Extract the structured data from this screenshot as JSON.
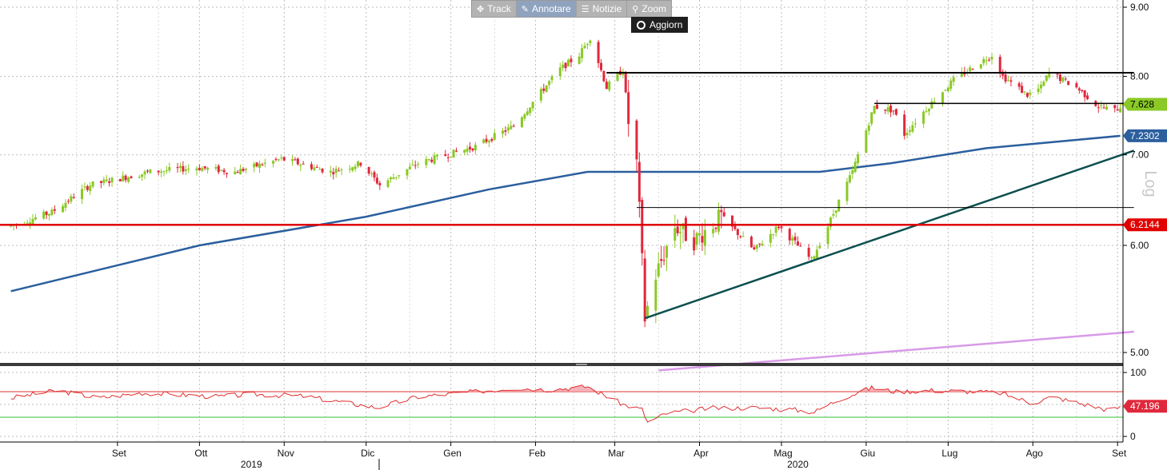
{
  "toolbar": {
    "track_label": "Track",
    "annotate_label": "Annotare",
    "news_label": "Notizie",
    "zoom_label": "Zoom",
    "refresh_label": "Aggiorn",
    "icons": [
      "move-icon",
      "pencil-icon",
      "news-icon",
      "magnifier-icon",
      "refresh-icon"
    ]
  },
  "chart_data": [
    {
      "type": "candlestick",
      "scale": "log",
      "log_label": "Log",
      "ylim": [
        4.85,
        9.1
      ],
      "y_ticks": [
        5.0,
        6.0,
        7.0,
        8.0,
        9.0
      ],
      "y_tick_labels": [
        "5.00",
        "6.00",
        "7.00",
        "8.00",
        "9.00"
      ],
      "grid": true,
      "colors": {
        "up": "#8ac926",
        "down": "#e0283c"
      },
      "anchors": [
        [
          "2019-07-24",
          6.2
        ],
        [
          "2019-08-08",
          6.35
        ],
        [
          "2019-08-22",
          6.65
        ],
        [
          "2019-09-13",
          6.8
        ],
        [
          "2019-09-30",
          6.85
        ],
        [
          "2019-10-14",
          6.8
        ],
        [
          "2019-10-31",
          6.95
        ],
        [
          "2019-11-18",
          6.8
        ],
        [
          "2019-11-29",
          6.9
        ],
        [
          "2019-12-06",
          6.65
        ],
        [
          "2019-12-20",
          6.9
        ],
        [
          "2020-01-10",
          7.1
        ],
        [
          "2020-01-24",
          7.35
        ],
        [
          "2020-02-10",
          8.1
        ],
        [
          "2020-02-17",
          8.3
        ],
        [
          "2020-02-21",
          8.55
        ],
        [
          "2020-02-27",
          7.85
        ],
        [
          "2020-03-04",
          8.1
        ],
        [
          "2020-03-06",
          7.4
        ],
        [
          "2020-03-09",
          6.9
        ],
        [
          "2020-03-12",
          5.3
        ],
        [
          "2020-03-16",
          5.7
        ],
        [
          "2020-03-23",
          6.2
        ],
        [
          "2020-03-30",
          6.05
        ],
        [
          "2020-04-09",
          6.3
        ],
        [
          "2020-04-21",
          5.95
        ],
        [
          "2020-04-30",
          6.2
        ],
        [
          "2020-05-12",
          5.85
        ],
        [
          "2020-05-18",
          6.2
        ],
        [
          "2020-05-27",
          6.8
        ],
        [
          "2020-06-04",
          7.6
        ],
        [
          "2020-06-11",
          7.55
        ],
        [
          "2020-06-15",
          7.25
        ],
        [
          "2020-06-25",
          7.65
        ],
        [
          "2020-07-03",
          7.95
        ],
        [
          "2020-07-17",
          8.3
        ],
        [
          "2020-07-21",
          8.0
        ],
        [
          "2020-07-30",
          7.75
        ],
        [
          "2020-08-04",
          7.85
        ],
        [
          "2020-08-07",
          8.05
        ],
        [
          "2020-08-17",
          7.85
        ],
        [
          "2020-08-25",
          7.6
        ],
        [
          "2020-08-31",
          7.55
        ],
        [
          "2020-09-02",
          7.6
        ]
      ],
      "lines": [
        {
          "name": "moving-average",
          "color": "#2b5f9e",
          "points": [
            [
              "2019-07-24",
              5.55
            ],
            [
              "2019-10-01",
              6.0
            ],
            [
              "2019-12-01",
              6.3
            ],
            [
              "2020-01-15",
              6.6
            ],
            [
              "2020-02-20",
              6.8
            ],
            [
              "2020-03-10",
              6.8
            ],
            [
              "2020-05-15",
              6.8
            ],
            [
              "2020-06-10",
              6.9
            ],
            [
              "2020-07-15",
              7.08
            ],
            [
              "2020-09-02",
              7.23
            ]
          ]
        },
        {
          "name": "trendline",
          "color": "#0d4f4f",
          "points": [
            [
              "2020-03-12",
              5.3
            ],
            [
              "2020-09-07",
              7.05
            ]
          ]
        },
        {
          "name": "lower-trendline",
          "color": "#d89ae8",
          "points": [
            [
              "2020-03-17",
              4.85
            ],
            [
              "2020-09-07",
              5.18
            ]
          ]
        },
        {
          "name": "horizontal-line-1",
          "color": "#000000",
          "points": [
            [
              "2020-02-27",
              8.05
            ],
            [
              "2020-09-07",
              8.05
            ]
          ]
        },
        {
          "name": "horizontal-line-2",
          "color": "#000000",
          "points": [
            [
              "2020-06-04",
              7.64
            ],
            [
              "2020-09-07",
              7.64
            ]
          ]
        },
        {
          "name": "horizontal-line-3",
          "color": "#000000",
          "points": [
            [
              "2020-03-09",
              6.4
            ],
            [
              "2020-09-07",
              6.4
            ]
          ]
        },
        {
          "name": "horizontal-line-4",
          "color": "#e00000",
          "points": [
            [
              "2019-07-20",
              6.2144
            ],
            [
              "2020-09-07",
              6.2144
            ]
          ]
        }
      ],
      "value_tags": [
        {
          "label": "7.628",
          "value": 7.628,
          "bg": "#8ac926",
          "fg": "#000000"
        },
        {
          "label": "7.2302",
          "value": 7.2302,
          "bg": "#2b5f9e",
          "fg": "#ffffff"
        },
        {
          "label": "6.2144",
          "value": 6.2144,
          "bg": "#e00000",
          "fg": "#ffffff"
        }
      ]
    },
    {
      "type": "line",
      "ylim": [
        -8,
        108
      ],
      "y_ticks": [
        0,
        100
      ],
      "y_tick_labels": [
        "0",
        "100"
      ],
      "levels": [
        70,
        30
      ],
      "level_colors": [
        "#e03030",
        "#30c030"
      ],
      "series_color": "#e03030",
      "current": {
        "label": "47.196",
        "value": 47.196,
        "bg": "#e0283c",
        "fg": "#ffffff"
      },
      "anchors": [
        [
          "2019-07-24",
          60
        ],
        [
          "2019-08-10",
          72
        ],
        [
          "2019-08-25",
          60
        ],
        [
          "2019-09-10",
          68
        ],
        [
          "2019-09-25",
          65
        ],
        [
          "2019-10-08",
          62
        ],
        [
          "2019-10-20",
          66
        ],
        [
          "2019-11-08",
          63
        ],
        [
          "2019-11-20",
          55
        ],
        [
          "2019-12-05",
          45
        ],
        [
          "2019-12-20",
          62
        ],
        [
          "2020-01-10",
          70
        ],
        [
          "2020-01-25",
          76
        ],
        [
          "2020-02-06",
          73
        ],
        [
          "2020-02-20",
          78
        ],
        [
          "2020-03-04",
          50
        ],
        [
          "2020-03-11",
          42
        ],
        [
          "2020-03-13",
          22
        ],
        [
          "2020-03-20",
          36
        ],
        [
          "2020-04-05",
          44
        ],
        [
          "2020-04-20",
          45
        ],
        [
          "2020-05-05",
          42
        ],
        [
          "2020-05-13",
          38
        ],
        [
          "2020-05-22",
          58
        ],
        [
          "2020-06-03",
          76
        ],
        [
          "2020-06-12",
          70
        ],
        [
          "2020-06-25",
          72
        ],
        [
          "2020-07-10",
          70
        ],
        [
          "2020-07-20",
          68
        ],
        [
          "2020-08-01",
          52
        ],
        [
          "2020-08-08",
          62
        ],
        [
          "2020-08-20",
          50
        ],
        [
          "2020-08-30",
          40
        ],
        [
          "2020-09-02",
          47.196
        ]
      ]
    }
  ],
  "time_axis": {
    "range": [
      "2019-07-20",
      "2020-09-03"
    ],
    "months": [
      {
        "label": "Set",
        "date": "2019-09-01"
      },
      {
        "label": "Ott",
        "date": "2019-10-01"
      },
      {
        "label": "Nov",
        "date": "2019-11-01"
      },
      {
        "label": "Dic",
        "date": "2019-12-01"
      },
      {
        "label": "Gen",
        "date": "2020-01-01"
      },
      {
        "label": "Feb",
        "date": "2020-02-01"
      },
      {
        "label": "Mar",
        "date": "2020-03-01"
      },
      {
        "label": "Apr",
        "date": "2020-04-01"
      },
      {
        "label": "Mag",
        "date": "2020-05-01"
      },
      {
        "label": "Giu",
        "date": "2020-06-01"
      },
      {
        "label": "Lug",
        "date": "2020-07-01"
      },
      {
        "label": "Ago",
        "date": "2020-08-01"
      },
      {
        "label": "Set",
        "date": "2020-09-01"
      }
    ],
    "years": [
      {
        "label": "2019",
        "date": "2019-10-20"
      },
      {
        "label": "2020",
        "date": "2020-05-07"
      }
    ],
    "year_separator": "2020-01-01"
  }
}
